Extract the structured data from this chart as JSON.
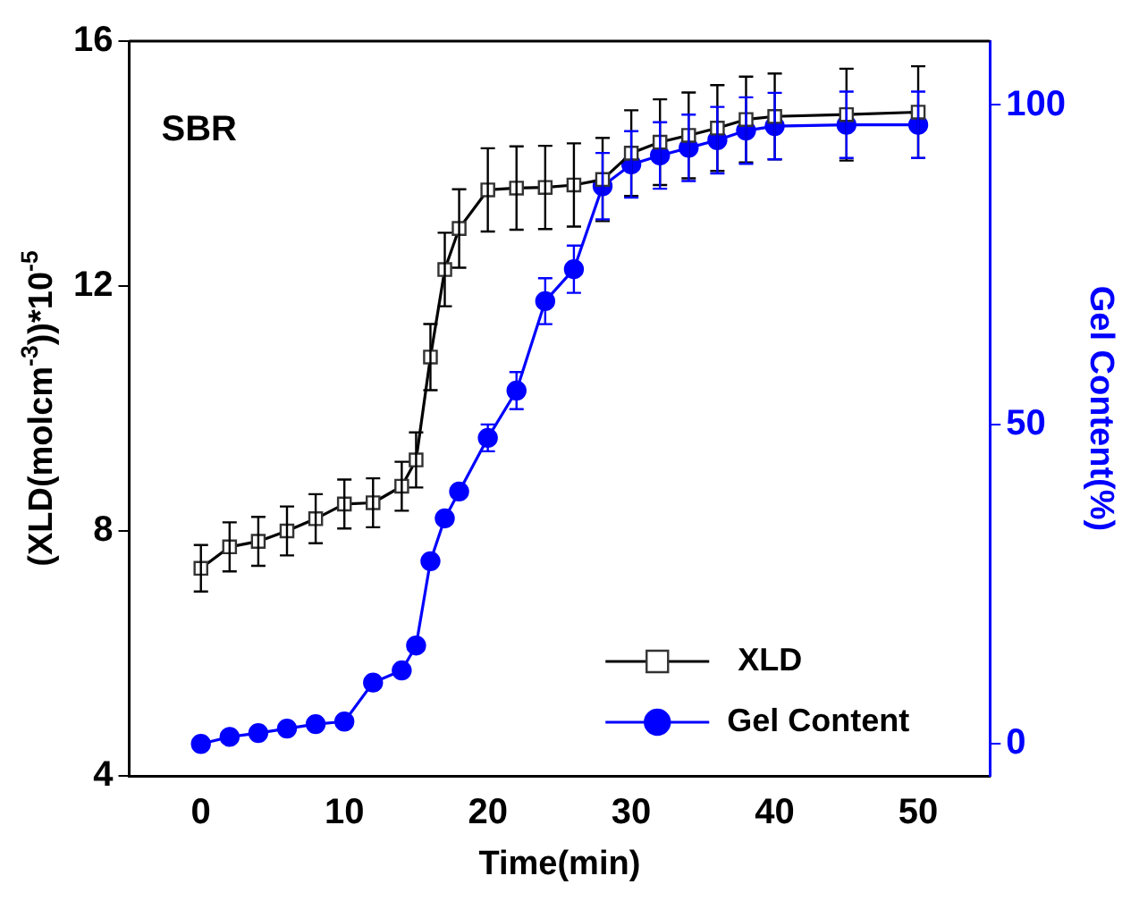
{
  "chart_data": {
    "type": "line",
    "xlabel": "Time(min)",
    "ylabel": "(XLD(molcm$^{-3}$))*10$^{-5}$",
    "y2label": "Gel Content(%)",
    "annotations": [
      "SBR"
    ],
    "x": [
      0,
      2,
      4,
      6,
      8,
      10,
      12,
      14,
      15,
      16,
      17,
      18,
      20,
      22,
      24,
      26,
      28,
      30,
      32,
      34,
      36,
      38,
      40,
      45,
      50
    ],
    "series": [
      {
        "name": "XLD",
        "color": "#000000",
        "marker": "square",
        "values": [
          7.39,
          7.74,
          7.83,
          8.0,
          8.2,
          8.44,
          8.46,
          8.73,
          9.16,
          10.84,
          12.27,
          12.94,
          13.57,
          13.6,
          13.61,
          13.65,
          13.74,
          14.17,
          14.35,
          14.46,
          14.58,
          14.72,
          14.77,
          14.8,
          14.84
        ],
        "errors": [
          0.38,
          0.4,
          0.4,
          0.4,
          0.4,
          0.4,
          0.4,
          0.4,
          0.45,
          0.54,
          0.6,
          0.64,
          0.68,
          0.68,
          0.68,
          0.68,
          0.68,
          0.7,
          0.7,
          0.7,
          0.7,
          0.7,
          0.7,
          0.75,
          0.75
        ]
      },
      {
        "name": "Gel Content",
        "color": "#0000ff",
        "marker": "circle",
        "axis": "y2",
        "values": [
          0,
          1.1,
          1.7,
          2.4,
          3.1,
          3.5,
          9.6,
          11.5,
          15.4,
          28.6,
          35.3,
          39.5,
          47.9,
          55.3,
          69.3,
          74.3,
          87.3,
          90.7,
          92.1,
          93.3,
          94.5,
          96,
          96.7,
          96.9,
          96.9
        ],
        "errors": [
          null,
          null,
          null,
          null,
          null,
          null,
          null,
          null,
          null,
          null,
          null,
          null,
          2.1,
          2.9,
          3.6,
          3.7,
          5.2,
          5.2,
          5.2,
          5.2,
          5.2,
          5.2,
          5.2,
          5.2,
          5.2
        ]
      }
    ],
    "xlim": [
      -5,
      55
    ],
    "xticks": [
      0,
      10,
      20,
      30,
      40,
      50
    ],
    "ylim": [
      4,
      16
    ],
    "yticks": [
      4,
      8,
      12,
      16
    ],
    "y2lim": [
      -5,
      110
    ],
    "y2ticks": [
      0,
      50,
      100
    ],
    "grid": false,
    "legend": "bottom right",
    "line_style": "solid"
  }
}
